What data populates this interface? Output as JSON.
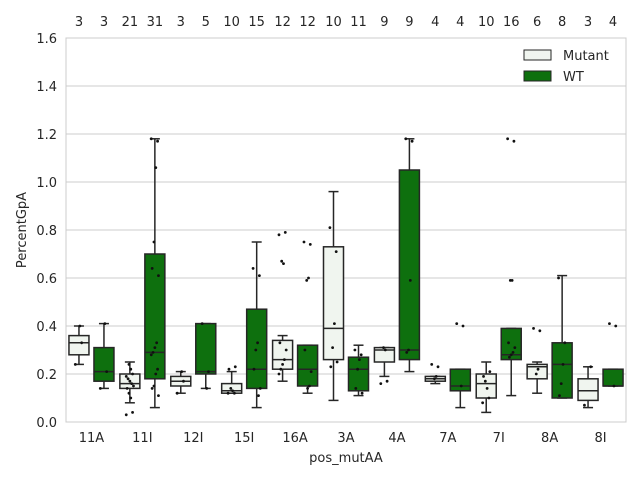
{
  "chart_data": {
    "type": "box",
    "title": "",
    "xlabel": "pos_mutAA",
    "ylabel": "PercentGpA",
    "ylim": [
      0.0,
      1.6
    ],
    "yticks": [
      "0.0",
      "0.2",
      "0.4",
      "0.6",
      "0.8",
      "1.0",
      "1.2",
      "1.4",
      "1.6"
    ],
    "grid": true,
    "legend_position": "top-right",
    "categories": [
      "11A",
      "11I",
      "12I",
      "15I",
      "16A",
      "3A",
      "4A",
      "7A",
      "7I",
      "8A",
      "8I"
    ],
    "series": [
      {
        "name": "Mutant",
        "color": "#f0f5ef",
        "counts": [
          "3",
          "21",
          "3",
          "10",
          "12",
          "10",
          "9",
          "4",
          "10",
          "6",
          "3"
        ],
        "boxes": [
          {
            "whislo": 0.24,
            "q1": 0.28,
            "med": 0.33,
            "q3": 0.36,
            "whishi": 0.4,
            "points": [
              0.24,
              0.33,
              0.4
            ]
          },
          {
            "whislo": 0.08,
            "q1": 0.14,
            "med": 0.16,
            "q3": 0.2,
            "whishi": 0.25,
            "points": [
              0.03,
              0.04,
              0.1,
              0.12,
              0.14,
              0.15,
              0.16,
              0.17,
              0.18,
              0.19,
              0.2,
              0.22,
              0.24
            ]
          },
          {
            "whislo": 0.12,
            "q1": 0.15,
            "med": 0.17,
            "q3": 0.19,
            "whishi": 0.21,
            "points": [
              0.12,
              0.17,
              0.21
            ]
          },
          {
            "whislo": 0.12,
            "q1": 0.12,
            "med": 0.13,
            "q3": 0.16,
            "whishi": 0.21,
            "points": [
              0.12,
              0.12,
              0.13,
              0.14,
              0.22,
              0.23
            ]
          },
          {
            "whislo": 0.17,
            "q1": 0.22,
            "med": 0.26,
            "q3": 0.34,
            "whishi": 0.36,
            "points": [
              0.78,
              0.79,
              0.66,
              0.67,
              0.33,
              0.3,
              0.26,
              0.24,
              0.22,
              0.2
            ]
          },
          {
            "whislo": 0.09,
            "q1": 0.26,
            "med": 0.39,
            "q3": 0.73,
            "whishi": 0.96,
            "points": [
              0.81,
              0.71,
              0.41,
              0.31,
              0.23,
              0.25
            ]
          },
          {
            "whislo": 0.19,
            "q1": 0.25,
            "med": 0.3,
            "q3": 0.31,
            "whishi": 0.31,
            "points": [
              0.16,
              0.17,
              0.3,
              0.31
            ]
          },
          {
            "whislo": 0.16,
            "q1": 0.17,
            "med": 0.18,
            "q3": 0.19,
            "whishi": 0.19,
            "points": [
              0.24,
              0.23,
              0.19,
              0.18
            ]
          },
          {
            "whislo": 0.04,
            "q1": 0.1,
            "med": 0.16,
            "q3": 0.2,
            "whishi": 0.25,
            "points": [
              0.08,
              0.1,
              0.14,
              0.17,
              0.19,
              0.21
            ]
          },
          {
            "whislo": 0.12,
            "q1": 0.18,
            "med": 0.23,
            "q3": 0.24,
            "whishi": 0.25,
            "points": [
              0.39,
              0.38,
              0.22,
              0.2
            ]
          },
          {
            "whislo": 0.06,
            "q1": 0.09,
            "med": 0.13,
            "q3": 0.18,
            "whishi": 0.23,
            "points": [
              0.07,
              0.23
            ]
          }
        ]
      },
      {
        "name": "WT",
        "color": "#0e700e",
        "counts": [
          "3",
          "31",
          "5",
          "15",
          "12",
          "11",
          "9",
          "4",
          "16",
          "8",
          "4"
        ],
        "boxes": [
          {
            "whislo": 0.14,
            "q1": 0.17,
            "med": 0.21,
            "q3": 0.31,
            "whishi": 0.41,
            "points": [
              0.14,
              0.21,
              0.41
            ]
          },
          {
            "whislo": 0.06,
            "q1": 0.18,
            "med": 0.29,
            "q3": 0.7,
            "whishi": 1.18,
            "points": [
              1.18,
              1.17,
              1.06,
              0.75,
              0.64,
              0.61,
              0.33,
              0.31,
              0.29,
              0.28,
              0.22,
              0.2,
              0.15,
              0.14,
              0.11
            ]
          },
          {
            "whislo": 0.14,
            "q1": 0.2,
            "med": 0.21,
            "q3": 0.41,
            "whishi": 0.41,
            "points": [
              0.41,
              0.21,
              0.14
            ]
          },
          {
            "whislo": 0.06,
            "q1": 0.14,
            "med": 0.22,
            "q3": 0.47,
            "whishi": 0.75,
            "points": [
              0.64,
              0.61,
              0.33,
              0.3,
              0.22,
              0.14,
              0.11
            ]
          },
          {
            "whislo": 0.12,
            "q1": 0.15,
            "med": 0.22,
            "q3": 0.32,
            "whishi": 0.32,
            "points": [
              0.75,
              0.74,
              0.6,
              0.59,
              0.3,
              0.21,
              0.15,
              0.14
            ]
          },
          {
            "whislo": 0.11,
            "q1": 0.13,
            "med": 0.22,
            "q3": 0.27,
            "whishi": 0.32,
            "points": [
              0.3,
              0.28,
              0.26,
              0.22,
              0.14,
              0.12
            ]
          },
          {
            "whislo": 0.21,
            "q1": 0.26,
            "med": 0.3,
            "q3": 1.05,
            "whishi": 1.18,
            "points": [
              1.18,
              1.17,
              0.59,
              0.3,
              0.29
            ]
          },
          {
            "whislo": 0.06,
            "q1": 0.13,
            "med": 0.15,
            "q3": 0.22,
            "whishi": 0.22,
            "points": [
              0.41,
              0.4,
              0.15
            ]
          },
          {
            "whislo": 0.11,
            "q1": 0.26,
            "med": 0.28,
            "q3": 0.39,
            "whishi": 0.39,
            "points": [
              1.18,
              1.17,
              0.59,
              0.59,
              0.33,
              0.31,
              0.29,
              0.28,
              0.27
            ]
          },
          {
            "whislo": 0.1,
            "q1": 0.1,
            "med": 0.24,
            "q3": 0.33,
            "whishi": 0.61,
            "points": [
              0.6,
              0.33,
              0.24,
              0.16,
              0.11
            ]
          },
          {
            "whislo": 0.15,
            "q1": 0.15,
            "med": 0.15,
            "q3": 0.22,
            "whishi": 0.22,
            "points": [
              0.41,
              0.4,
              0.15
            ]
          }
        ]
      }
    ]
  }
}
